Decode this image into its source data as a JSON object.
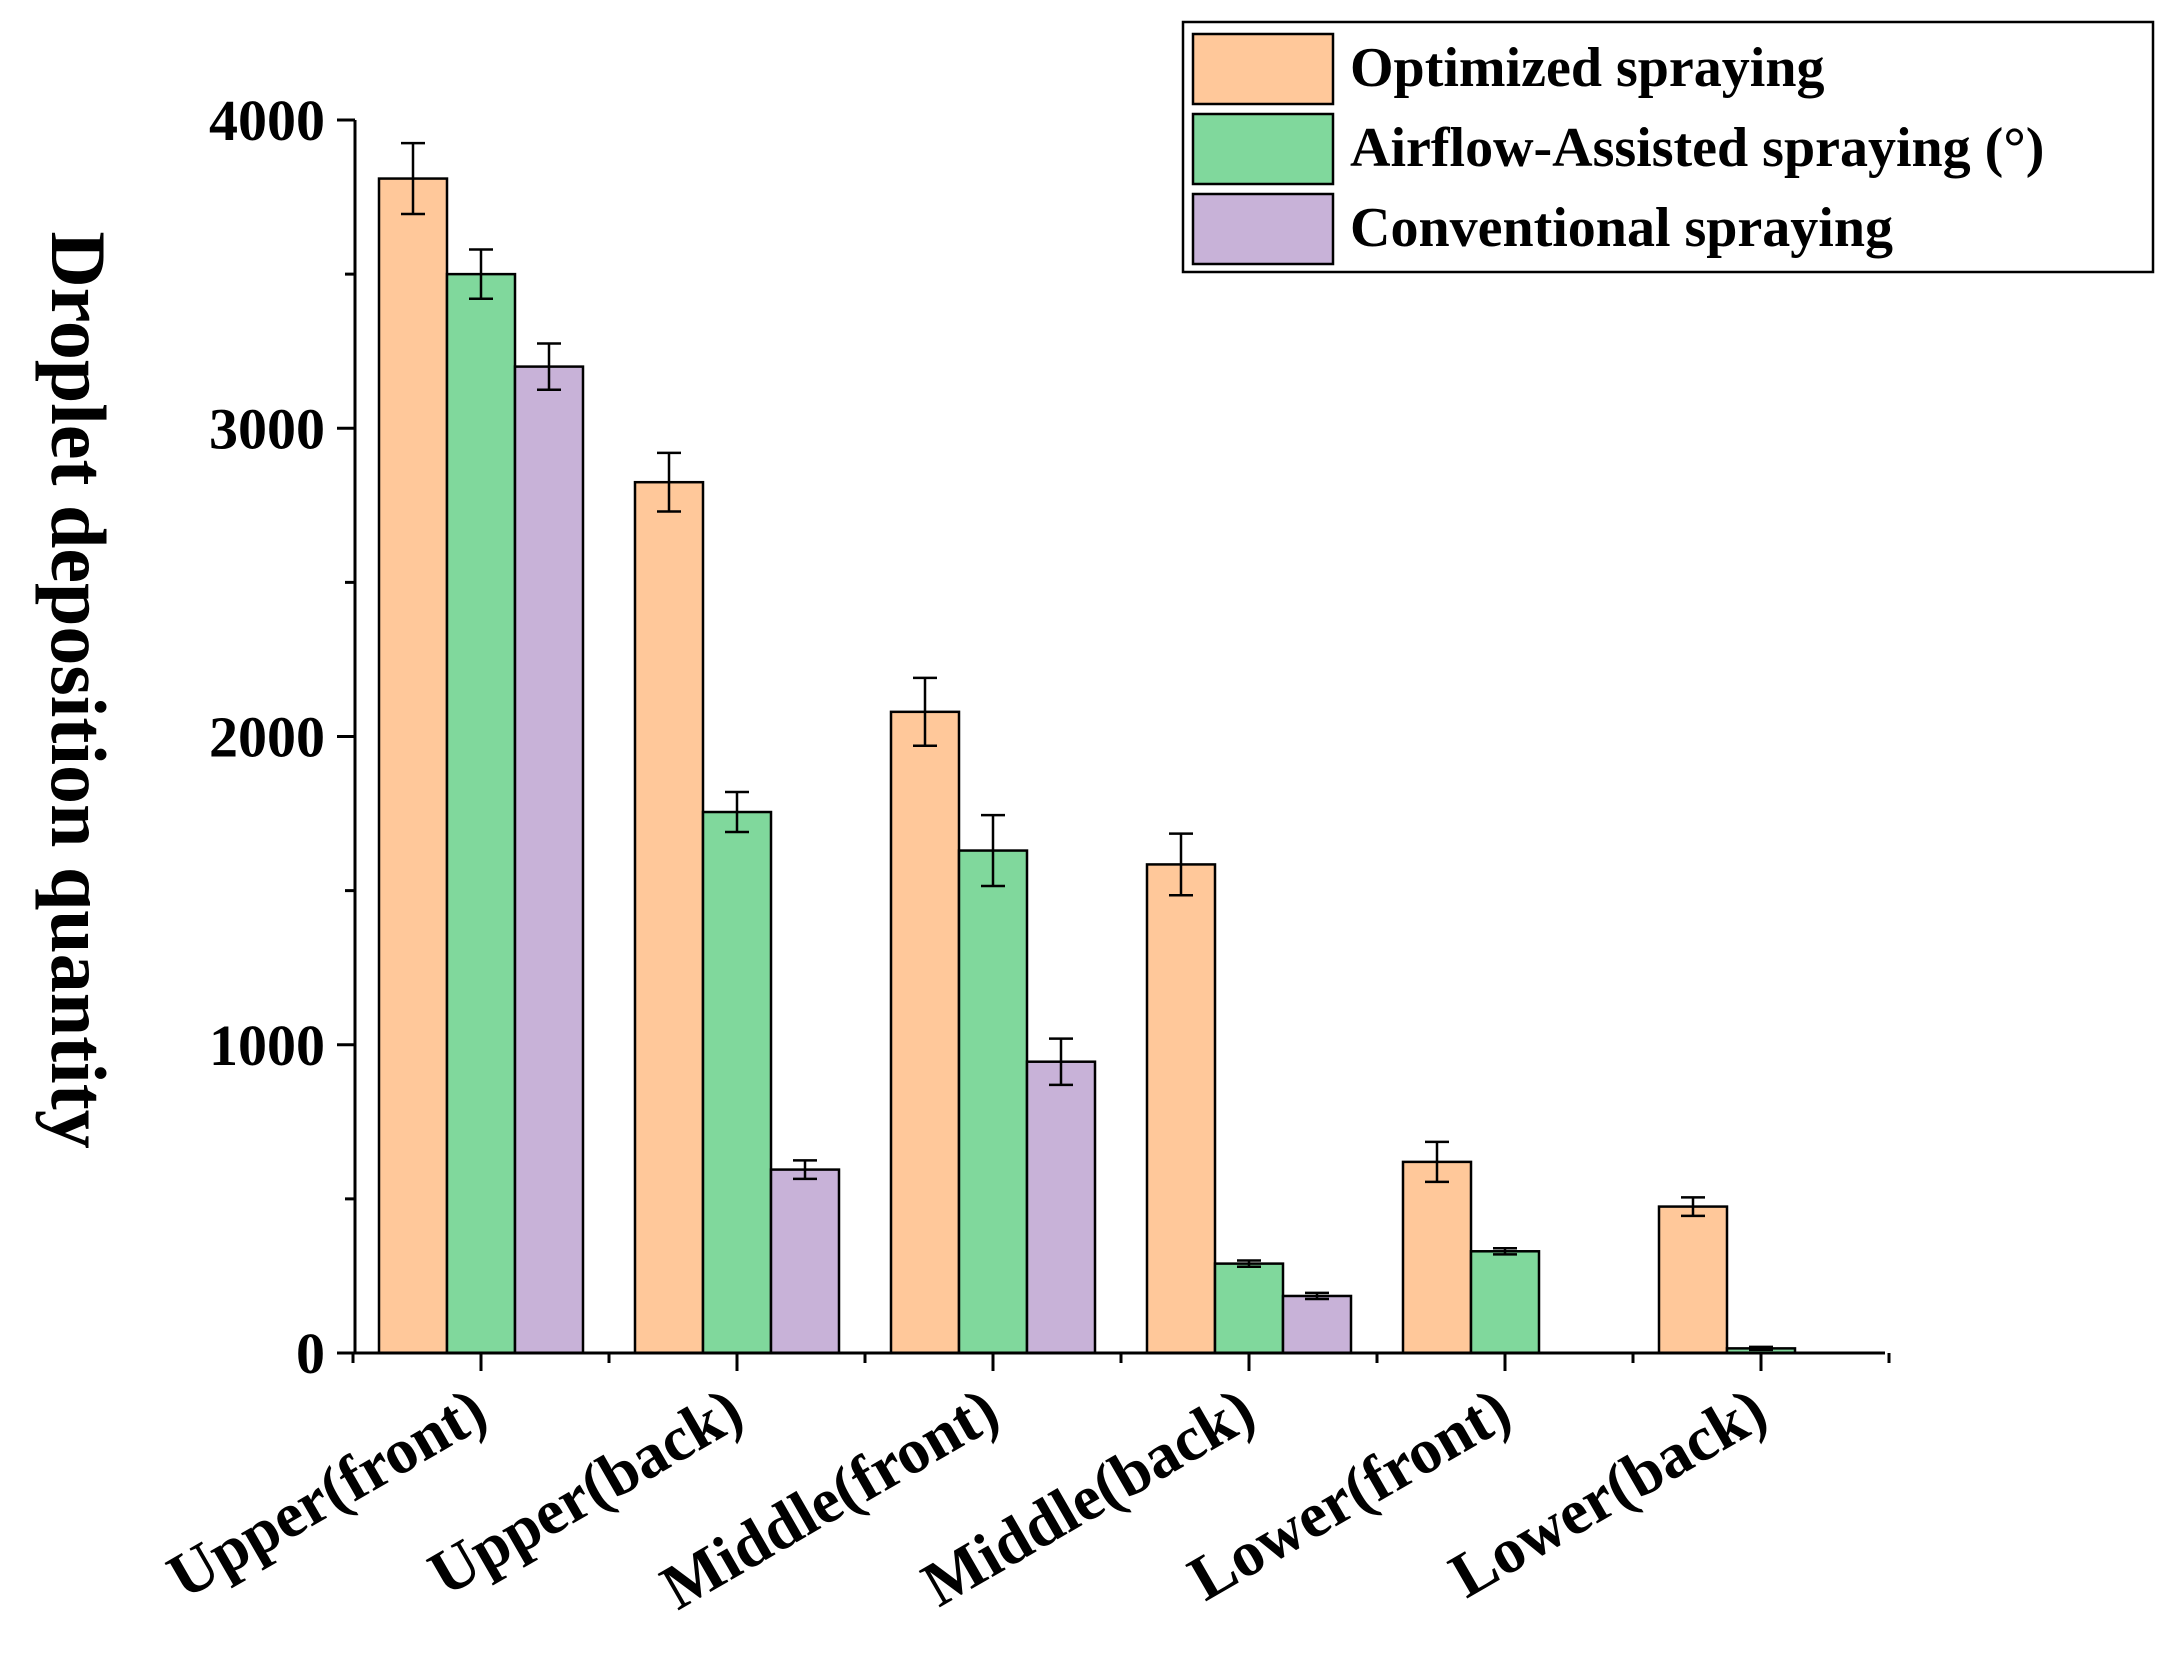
{
  "chart_data": {
    "type": "bar",
    "title": "",
    "xlabel": "",
    "ylabel": "Droplet deposition quantity",
    "ylim": [
      0,
      4000
    ],
    "yticks": [
      0,
      1000,
      2000,
      3000,
      4000
    ],
    "y_tick_labels": [
      "0",
      "1000",
      "2000",
      "3000",
      "4000"
    ],
    "grid": false,
    "legend_position": "top-right",
    "categories": [
      "Upper(front)",
      "Upper(back)",
      "Middle(front)",
      "Middle(back)",
      "Lower(front)",
      "Lower(back)"
    ],
    "series": [
      {
        "name": "Optimized spraying",
        "color": "#FFC89A",
        "values": [
          3810,
          2825,
          2080,
          1585,
          620,
          475
        ],
        "errors": [
          115,
          95,
          110,
          100,
          65,
          30
        ]
      },
      {
        "name": "Airflow-Assisted spraying (°)",
        "color": "#80D89C",
        "values": [
          3500,
          1755,
          1630,
          290,
          330,
          15
        ],
        "errors": [
          80,
          65,
          115,
          10,
          10,
          5
        ]
      },
      {
        "name": "Conventional spraying",
        "color": "#C8B2D8",
        "values": [
          3200,
          595,
          945,
          185,
          0,
          0
        ],
        "errors": [
          75,
          30,
          75,
          10,
          0,
          0
        ]
      }
    ]
  }
}
